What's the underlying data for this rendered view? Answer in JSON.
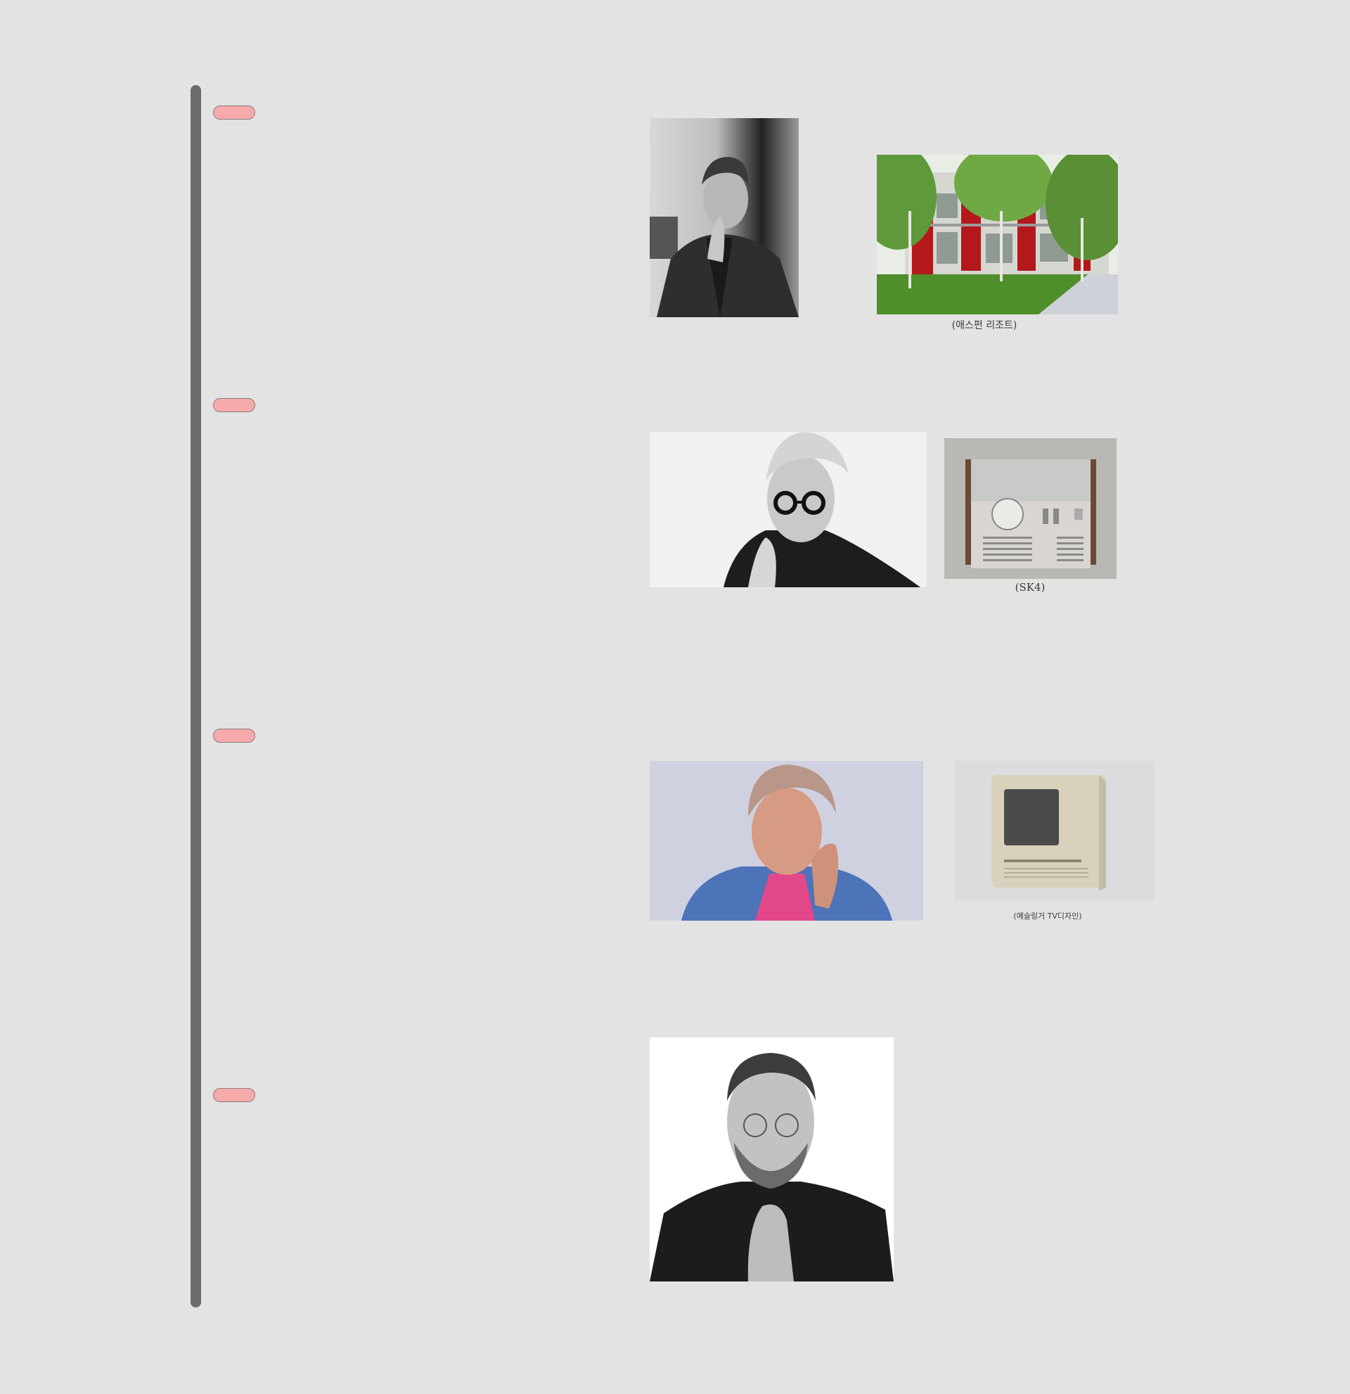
{
  "timeline": {
    "entries": [
      {
        "id": "entry-1",
        "caption": "(애스펀 리조트)"
      },
      {
        "id": "entry-2",
        "caption": "(SK4)"
      },
      {
        "id": "entry-3",
        "caption": "(예슬링거 TV디자인)"
      },
      {
        "id": "entry-4",
        "caption": ""
      }
    ]
  },
  "colors": {
    "background": "#e3e3e3",
    "rail": "#6b6b6b",
    "marker_fill": "#f7aaab",
    "marker_border": "#8a7b7b"
  }
}
